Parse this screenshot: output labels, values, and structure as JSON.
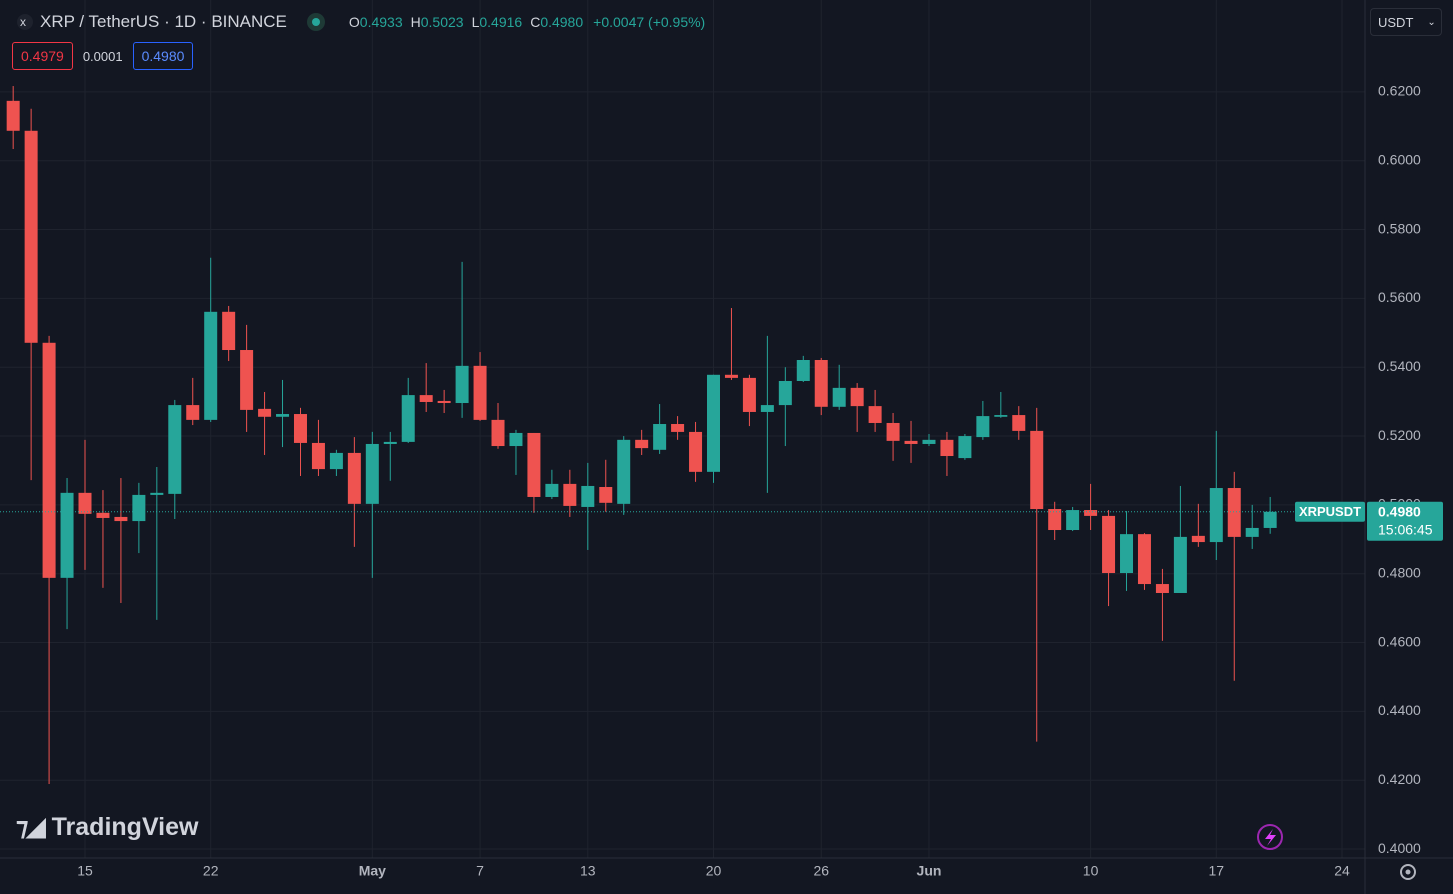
{
  "header": {
    "title": "XRP / TetherUS · 1D · BINANCE",
    "ohlc": [
      {
        "key": "O",
        "value": "0.4933"
      },
      {
        "key": "H",
        "value": "0.5023"
      },
      {
        "key": "L",
        "value": "0.4916"
      },
      {
        "key": "C",
        "value": "0.4980"
      }
    ],
    "change": "+0.0047 (+0.95%)",
    "bid": "0.4979",
    "spread": "0.0001",
    "ask": "0.4980",
    "currency": "USDT",
    "logo": "TradingView"
  },
  "chart_data": {
    "type": "candlestick",
    "categories": [
      null,
      null,
      null,
      null,
      "15",
      null,
      null,
      null,
      null,
      null,
      null,
      "22",
      null,
      null,
      null,
      null,
      null,
      null,
      null,
      null,
      "May",
      null,
      null,
      null,
      null,
      null,
      "7",
      null,
      null,
      null,
      null,
      null,
      "13",
      null,
      null,
      null,
      null,
      null,
      null,
      "20",
      null,
      null,
      null,
      null,
      null,
      "26",
      null,
      null,
      null,
      null,
      null,
      "Jun",
      null,
      null,
      null,
      null,
      null,
      null,
      null,
      null,
      "10",
      null,
      null,
      null,
      null,
      null,
      null,
      "17",
      null,
      null,
      null,
      null,
      null,
      null,
      "24"
    ],
    "up_color": "#26a69a",
    "down_color": "#ef5350",
    "open": [
      0.6174,
      0.6087,
      0.5471,
      0.4788,
      0.5035,
      0.4977,
      0.4965,
      0.4953,
      0.5029,
      0.5032,
      0.529,
      0.5247,
      0.5561,
      0.545,
      0.5279,
      0.5256,
      0.5264,
      0.518,
      0.5104,
      0.5151,
      0.5003,
      0.5177,
      0.5183,
      0.5319,
      0.5302,
      0.5296,
      0.5404,
      0.5247,
      0.5171,
      0.5209,
      0.5023,
      0.5061,
      0.4994,
      0.5052,
      0.5003,
      0.5189,
      0.516,
      0.5235,
      0.5212,
      0.5096,
      0.5378,
      0.5369,
      0.527,
      0.529,
      0.536,
      0.5421,
      0.5285,
      0.534,
      0.5287,
      0.5238,
      0.5186,
      0.5177,
      0.5189,
      0.5136,
      0.5197,
      0.5256,
      0.5261,
      0.5215,
      0.4988,
      0.4927,
      0.4985,
      0.4968,
      0.4802,
      0.4915,
      0.477,
      0.4744,
      0.491,
      0.4892,
      0.5049,
      0.4907,
      0.4933,
      null,
      null,
      null,
      null
    ],
    "high": [
      0.6217,
      0.6151,
      0.5491,
      0.5078,
      0.5189,
      0.5043,
      0.5078,
      0.5064,
      0.511,
      0.5305,
      0.5369,
      0.5718,
      0.5578,
      0.5523,
      0.5328,
      0.5363,
      0.5282,
      0.5247,
      0.516,
      0.5197,
      0.5212,
      0.5212,
      0.5369,
      0.5412,
      0.5334,
      0.5706,
      0.5444,
      0.5296,
      0.5218,
      0.5209,
      0.5102,
      0.5102,
      0.5122,
      0.5131,
      0.52,
      0.5218,
      0.5293,
      0.5258,
      0.5241,
      0.5378,
      0.5572,
      0.5378,
      0.5491,
      0.54,
      0.5433,
      0.5427,
      0.5407,
      0.5354,
      0.5334,
      0.5267,
      0.5244,
      0.5206,
      0.5212,
      0.5206,
      0.5302,
      0.5328,
      0.5287,
      0.5282,
      0.5009,
      0.4994,
      0.5061,
      0.4985,
      0.4982,
      0.4918,
      0.4814,
      0.5055,
      0.5003,
      0.5215,
      0.5096,
      0.5,
      0.5023,
      null,
      null,
      null,
      null
    ],
    "low": [
      0.6034,
      0.5072,
      0.4189,
      0.4639,
      0.4811,
      0.4759,
      0.4715,
      0.486,
      0.4666,
      0.4959,
      0.5232,
      0.5241,
      0.5418,
      0.5212,
      0.5145,
      0.5168,
      0.5084,
      0.5084,
      0.5084,
      0.4878,
      0.4788,
      0.507,
      0.518,
      0.527,
      0.5267,
      0.5253,
      0.5244,
      0.5163,
      0.5087,
      0.4977,
      0.5017,
      0.4965,
      0.4869,
      0.498,
      0.4971,
      0.5145,
      0.5148,
      0.5189,
      0.5067,
      0.5064,
      0.5363,
      0.5229,
      0.5035,
      0.5171,
      0.5357,
      0.5261,
      0.5276,
      0.5212,
      0.5212,
      0.5128,
      0.5122,
      0.5171,
      0.5084,
      0.5131,
      0.5189,
      0.5253,
      0.5189,
      0.4312,
      0.4898,
      0.4924,
      0.4927,
      0.4706,
      0.475,
      0.4753,
      0.4605,
      0.4744,
      0.4878,
      0.484,
      0.4489,
      0.4872,
      0.4916,
      null,
      null,
      null,
      null
    ],
    "close": [
      0.6087,
      0.5471,
      0.4788,
      0.5035,
      0.4974,
      0.4962,
      0.4953,
      0.5029,
      0.5035,
      0.529,
      0.5247,
      0.5561,
      0.545,
      0.5276,
      0.5256,
      0.5264,
      0.518,
      0.5104,
      0.5151,
      0.5003,
      0.5177,
      0.5183,
      0.5319,
      0.5299,
      0.5296,
      0.5404,
      0.5247,
      0.5171,
      0.5209,
      0.5023,
      0.5061,
      0.4997,
      0.5055,
      0.5006,
      0.5189,
      0.5165,
      0.5235,
      0.5212,
      0.5096,
      0.5378,
      0.5369,
      0.527,
      0.529,
      0.536,
      0.5421,
      0.5285,
      0.534,
      0.5287,
      0.5238,
      0.5186,
      0.5177,
      0.5189,
      0.5142,
      0.52,
      0.5258,
      0.5261,
      0.5215,
      0.4988,
      0.4927,
      0.4985,
      0.4968,
      0.4802,
      0.4915,
      0.477,
      0.4744,
      0.4907,
      0.4892,
      0.5049,
      0.4907,
      0.4933,
      0.498,
      null,
      null,
      null,
      null
    ],
    "ylim": [
      0.3974,
      0.6467
    ],
    "yticks": [
      {
        "value": 0.4,
        "label": "0.4000"
      },
      {
        "value": 0.42,
        "label": "0.4200"
      },
      {
        "value": 0.44,
        "label": "0.4400"
      },
      {
        "value": 0.46,
        "label": "0.4600"
      },
      {
        "value": 0.48,
        "label": "0.4800"
      },
      {
        "value": 0.5,
        "label": "0.5000"
      },
      {
        "value": 0.52,
        "label": "0.5200"
      },
      {
        "value": 0.54,
        "label": "0.5400"
      },
      {
        "value": 0.56,
        "label": "0.5600"
      },
      {
        "value": 0.58,
        "label": "0.5800"
      },
      {
        "value": 0.6,
        "label": "0.6000"
      },
      {
        "value": 0.62,
        "label": "0.6200"
      }
    ],
    "grid": true,
    "last_price": {
      "symbol": "XRPUSDT",
      "value": 0.498,
      "label": "0.4980",
      "countdown": "15:06:45"
    }
  }
}
